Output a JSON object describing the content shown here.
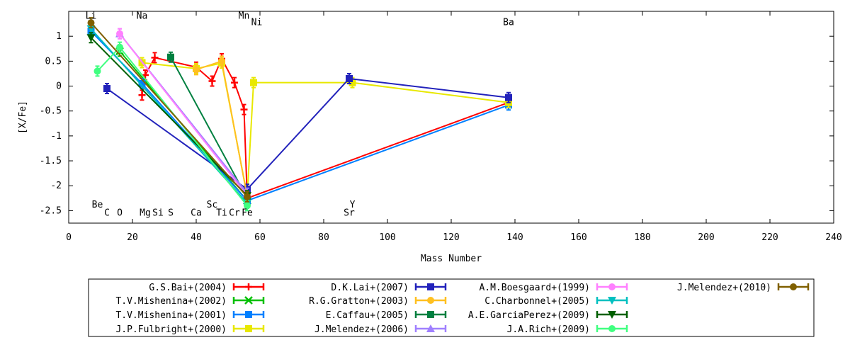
{
  "chart_data": {
    "type": "line",
    "xlabel": "Mass Number",
    "ylabel": "[X/Fe]",
    "xlim": [
      0,
      240
    ],
    "ylim": [
      -2.75,
      1.5
    ],
    "x_ticks": [
      0,
      20,
      40,
      60,
      80,
      100,
      120,
      140,
      160,
      180,
      200,
      220,
      240
    ],
    "x_tick_labels": [
      "0",
      "20",
      "40",
      "60",
      "80",
      "100",
      "120",
      "140",
      "160",
      "180",
      "200",
      "220",
      "240"
    ],
    "y_ticks": [
      1,
      0.5,
      0,
      -0.5,
      -1,
      -1.5,
      -2,
      -2.5
    ],
    "y_tick_labels": [
      "1",
      "0.5",
      "0",
      "-0.5",
      "-1",
      "-1.5",
      "-2",
      "-2.5"
    ],
    "grid": false,
    "legend_position": "bottom",
    "element_labels": [
      {
        "text": "Li",
        "x": 7,
        "y": 1.35
      },
      {
        "text": "Na",
        "x": 23,
        "y": 1.35
      },
      {
        "text": "Mn",
        "x": 55,
        "y": 1.35
      },
      {
        "text": "Ni",
        "x": 59,
        "y": 1.22
      },
      {
        "text": "Ba",
        "x": 138,
        "y": 1.22
      },
      {
        "text": "Be",
        "x": 9,
        "y": -2.44
      },
      {
        "text": "C",
        "x": 12,
        "y": -2.6
      },
      {
        "text": "O",
        "x": 16,
        "y": -2.6
      },
      {
        "text": "Mg",
        "x": 24,
        "y": -2.6
      },
      {
        "text": "Si",
        "x": 28,
        "y": -2.6
      },
      {
        "text": "S",
        "x": 32,
        "y": -2.6
      },
      {
        "text": "Ca",
        "x": 40,
        "y": -2.6
      },
      {
        "text": "Sc",
        "x": 45,
        "y": -2.44
      },
      {
        "text": "Ti",
        "x": 48,
        "y": -2.6
      },
      {
        "text": "Cr",
        "x": 52,
        "y": -2.6
      },
      {
        "text": "Fe",
        "x": 56,
        "y": -2.6
      },
      {
        "text": "Y",
        "x": 89,
        "y": -2.44
      },
      {
        "text": "Sr",
        "x": 88,
        "y": -2.6
      }
    ],
    "series": [
      {
        "name": "G.S.Bai+(2004)",
        "color": "#ff0000",
        "marker": "plus",
        "x": [
          23,
          24,
          27,
          40,
          45,
          48,
          52,
          55,
          56,
          138
        ],
        "y": [
          -0.18,
          0.22,
          0.57,
          0.38,
          0.1,
          0.55,
          0.07,
          -0.47,
          -2.25,
          -0.33
        ]
      },
      {
        "name": "T.V.Mishenina+(2002)",
        "color": "#00c000",
        "marker": "x",
        "x": [
          16,
          56
        ],
        "y": [
          0.7,
          -2.3
        ]
      },
      {
        "name": "T.V.Mishenina+(2001)",
        "color": "#0080ff",
        "marker": "square",
        "x": [
          7,
          23,
          56,
          138
        ],
        "y": [
          1.1,
          0.05,
          -2.3,
          -0.38
        ]
      },
      {
        "name": "J.P.Fulbright+(2000)",
        "color": "#e8e800",
        "marker": "square",
        "x": [
          23,
          40,
          48,
          56,
          58,
          89,
          138
        ],
        "y": [
          0.47,
          0.35,
          0.46,
          -2.2,
          0.07,
          0.07,
          -0.33
        ]
      },
      {
        "name": "D.K.Lai+(2007)",
        "color": "#2222bb",
        "marker": "square",
        "x": [
          12,
          56,
          88,
          138
        ],
        "y": [
          -0.05,
          -2.07,
          0.15,
          -0.23
        ]
      },
      {
        "name": "R.G.Gratton+(2003)",
        "color": "#ffc020",
        "marker": "circle",
        "x": [
          40,
          48,
          56
        ],
        "y": [
          0.33,
          0.5,
          -2.22
        ]
      },
      {
        "name": "E.Caffau+(2005)",
        "color": "#008040",
        "marker": "square",
        "x": [
          32,
          56
        ],
        "y": [
          0.58,
          -2.25
        ]
      },
      {
        "name": "J.Melendez+(2006)",
        "color": "#a080ff",
        "marker": "triangle-up",
        "x": [
          16,
          56
        ],
        "y": [
          1.05,
          -2.15
        ]
      },
      {
        "name": "A.M.Boesgaard+(1999)",
        "color": "#ff80ff",
        "marker": "circle",
        "x": [
          16,
          56
        ],
        "y": [
          1.05,
          -2.2
        ]
      },
      {
        "name": "C.Charbonnel+(2005)",
        "color": "#00c0c0",
        "marker": "triangle-down",
        "x": [
          7,
          56
        ],
        "y": [
          1.15,
          -2.35
        ]
      },
      {
        "name": "A.E.GarciaPerez+(2009)",
        "color": "#006000",
        "marker": "triangle-down",
        "x": [
          7,
          56
        ],
        "y": [
          0.97,
          -2.2
        ]
      },
      {
        "name": "J.A.Rich+(2009)",
        "color": "#40ff80",
        "marker": "circle",
        "x": [
          9,
          16,
          56
        ],
        "y": [
          0.3,
          0.78,
          -2.4
        ]
      },
      {
        "name": "J.Melendez+(2010)",
        "color": "#806000",
        "marker": "circle",
        "x": [
          7,
          56
        ],
        "y": [
          1.27,
          -2.22
        ]
      }
    ]
  }
}
